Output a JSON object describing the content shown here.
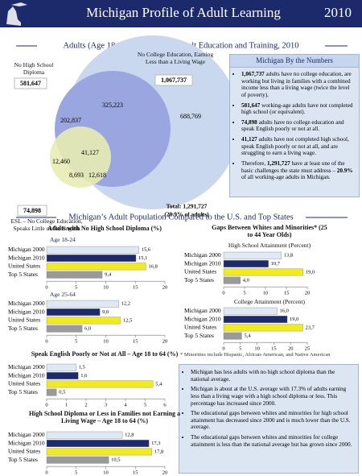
{
  "header": {
    "title": "Michigan Profile of Adult Learning",
    "year": "2010"
  },
  "venn": {
    "title": "Adults (Age 18 to 64) In Need of Adult Education and Training, 2010",
    "label_no_diploma": "No High School Diploma",
    "label_no_college": "No College Education, Earning Less than a Living Wage",
    "label_esl": "ESL – No College Education, Speaks Little or No English",
    "total_no_diploma": "581,647",
    "total_no_college": "1,067,737",
    "total_esl": "74,898",
    "region_diploma_college": "325,223",
    "region_diploma_only": "202,837",
    "region_college_only": "688,769",
    "region_all": "41,127",
    "region_esl_diploma": "12,460",
    "region_esl_only": "8,693",
    "region_esl_college": "12,618",
    "total": "Total: 1,291,727",
    "total_share": "(20.9% of adults)"
  },
  "numbers_box": {
    "title": "Michigan By the Numbers",
    "bullets": [
      [
        {
          "text": "1,067,737",
          "bold": true
        },
        {
          "text": " adults have no college education, are working but living in families with a combined income less than a living wage (twice the level of poverty)."
        }
      ],
      [
        {
          "text": "581,647",
          "bold": true
        },
        {
          "text": " working-age adults have not completed high school (or equivalent)."
        }
      ],
      [
        {
          "text": "74,898",
          "bold": true
        },
        {
          "text": " adults have no college education and speak English poorly or not at all."
        }
      ],
      [
        {
          "text": "41,127",
          "bold": true
        },
        {
          "text": " adults have not completed high school, speak English poorly or not at all, and are struggling to earn a living wage."
        }
      ],
      [
        {
          "text": "Therefore, "
        },
        {
          "text": "1,291,727",
          "bold": true
        },
        {
          "text": " have at least one of the basic challenges the state must address – "
        },
        {
          "text": "20.9%",
          "bold": true
        },
        {
          "text": " of all working-age adults in Michigan."
        }
      ]
    ]
  },
  "comparison": {
    "title": "Michigan’s Adult Population Compared to the U.S. and Top States",
    "bar_colors": [
      "#dfe8f5",
      "#1e2a6e",
      "#f2ea1d",
      "#9a9a9a"
    ],
    "charts": [
      {
        "title": "Adults with No High School Diploma (%)",
        "subtitle": "Age 18-24",
        "categories": [
          "Michigan 2000",
          "Michigan 2010",
          "United States",
          "Top 5 States"
        ],
        "values": [
          15.6,
          15.1,
          16.8,
          9.4
        ],
        "value_labels": [
          "15,6",
          "15,1",
          "16,8",
          "9,4"
        ],
        "xlim": [
          0,
          20
        ],
        "xticks": [
          0,
          5,
          10,
          15,
          20
        ]
      },
      {
        "subtitle": "Age 25-64",
        "categories": [
          "Michigan 2000",
          "Michigan 2010",
          "United States",
          "Top 5 States"
        ],
        "values": [
          12.2,
          9.0,
          12.5,
          6.0
        ],
        "value_labels": [
          "12,2",
          "9,0",
          "12,5",
          "6,0"
        ],
        "xlim": [
          0,
          20
        ],
        "xticks": [
          0,
          5,
          10,
          15,
          20
        ]
      },
      {
        "title": "Speak English Poorly or Not at All – Age 18 to 64 (%)",
        "categories": [
          "Michigan 2000",
          "Michigan 2010",
          "United States",
          "Top 5 States"
        ],
        "values": [
          1.5,
          1.6,
          5.4,
          0.5
        ],
        "value_labels": [
          "1,5",
          "1,6",
          "5,4",
          "0,5"
        ],
        "xlim": [
          0,
          6
        ],
        "xticks": [
          0,
          1,
          2,
          3,
          4,
          5,
          6
        ]
      },
      {
        "title": "High School Diploma or Less in Families not Earning a Living Wage – Age 18 to 64 (%)",
        "categories": [
          "Michigan 2000",
          "Michigan 2010",
          "United States",
          "Top 5 States"
        ],
        "values": [
          12.8,
          17.3,
          17.8,
          10.5
        ],
        "value_labels": [
          "12,8",
          "17,3",
          "17,8",
          "10,5"
        ],
        "xlim": [
          0,
          20
        ],
        "xticks": [
          0,
          5,
          10,
          15,
          20
        ]
      },
      {
        "title": "Gaps Between Whites and Minorities* (25 to 44 Year Olds)",
        "subtitle": "High School Attainment (Percent)",
        "categories": [
          "Michigan 2000",
          "Michigan 2010",
          "United States",
          "Top 5 States"
        ],
        "values": [
          13.8,
          10.7,
          19.0,
          4.0
        ],
        "value_labels": [
          "13,8",
          "10,7",
          "19,0",
          "4,0"
        ],
        "xlim": [
          0,
          20
        ],
        "xticks": [
          0,
          5,
          10,
          15,
          20
        ]
      },
      {
        "subtitle": "College Attainment (Percent)",
        "categories": [
          "Michigan 2000",
          "Michigan 2010",
          "United States",
          "Top 5 States"
        ],
        "values": [
          16.0,
          19.0,
          23.7,
          5.4
        ],
        "value_labels": [
          "16,0",
          "19,0",
          "23,7",
          "5,4"
        ],
        "xlim": [
          0,
          25
        ],
        "xticks": [
          0,
          5,
          10,
          15,
          20,
          25
        ]
      }
    ],
    "footnote": "* Minorities include Hispanic, African-American, and Native American",
    "findings": [
      "Michigan has less adults with no high school diploma than the national average.",
      "Michigan is about at the U.S. average with 17.3% of adults earning less than a living wage with a high school diploma or less. This percentage has increased since 2000.",
      "The educational gaps between whites and minorities for high school attainment has decreased since 2000 and is much lower than the U.S. average.",
      "The educational gaps between whites and minorities for college attainment is less than the national average but has grown since 2000."
    ]
  }
}
